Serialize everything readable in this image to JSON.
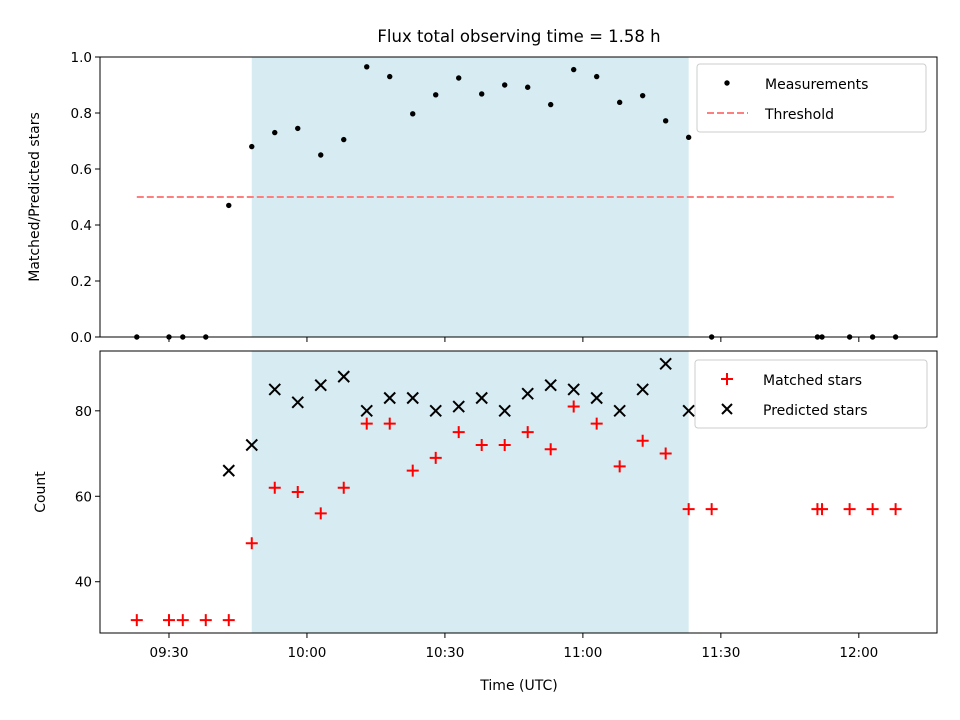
{
  "chart_data": [
    {
      "type": "scatter",
      "title": "Flux total observing time = 1.58 h",
      "xlabel": "",
      "ylabel": "Matched/Predicted stars",
      "ylim": [
        0,
        1.0
      ],
      "yticks": [
        "0.0",
        "0.2",
        "0.4",
        "0.6",
        "0.8",
        "1.0"
      ],
      "xlim": [
        "09:15",
        "12:17"
      ],
      "shaded_interval": [
        "09:48",
        "11:23"
      ],
      "shade_color": "#add8e6",
      "legend_position": "upper right",
      "series": [
        {
          "name": "Measurements",
          "marker": "dot",
          "color": "#000000",
          "x": [
            "09:23",
            "09:30",
            "09:33",
            "09:38",
            "09:43",
            "09:48",
            "09:53",
            "09:58",
            "10:03",
            "10:08",
            "10:13",
            "10:18",
            "10:23",
            "10:28",
            "10:33",
            "10:38",
            "10:43",
            "10:48",
            "10:53",
            "10:58",
            "11:03",
            "11:08",
            "11:13",
            "11:18",
            "11:23",
            "11:28",
            "11:51",
            "11:52",
            "11:58",
            "12:03",
            "12:08"
          ],
          "y": [
            0,
            0,
            0,
            0,
            0.47,
            0.68,
            0.73,
            0.745,
            0.65,
            0.705,
            0.965,
            0.93,
            0.797,
            0.865,
            0.925,
            0.868,
            0.9,
            0.892,
            0.83,
            0.955,
            0.93,
            0.838,
            0.862,
            0.772,
            0.713,
            0,
            0,
            0,
            0,
            0,
            0
          ]
        },
        {
          "name": "Threshold",
          "style": "dashed",
          "color": "#ff7f7f",
          "x": [
            "09:23",
            "12:08"
          ],
          "y": [
            0.5,
            0.5
          ]
        }
      ]
    },
    {
      "type": "scatter",
      "xlabel": "Time (UTC)",
      "ylabel": "Count",
      "ylim": [
        28,
        94
      ],
      "yticks": [
        "40",
        "60",
        "80"
      ],
      "xlim": [
        "09:15",
        "12:17"
      ],
      "xticks": [
        "09:30",
        "10:00",
        "10:30",
        "11:00",
        "11:30",
        "12:00"
      ],
      "shaded_interval": [
        "09:48",
        "11:23"
      ],
      "shade_color": "#add8e6",
      "legend_position": "upper right",
      "series": [
        {
          "name": "Matched stars",
          "marker": "plus",
          "color": "#ff0000",
          "x": [
            "09:23",
            "09:30",
            "09:33",
            "09:38",
            "09:43",
            "09:48",
            "09:53",
            "09:58",
            "10:03",
            "10:08",
            "10:13",
            "10:18",
            "10:23",
            "10:28",
            "10:33",
            "10:38",
            "10:43",
            "10:48",
            "10:53",
            "10:58",
            "11:03",
            "11:08",
            "11:13",
            "11:18",
            "11:23",
            "11:28",
            "11:51",
            "11:52",
            "11:58",
            "12:03",
            "12:08"
          ],
          "y": [
            31,
            31,
            31,
            31,
            31,
            49,
            62,
            61,
            56,
            62,
            77,
            77,
            66,
            69,
            75,
            72,
            72,
            75,
            71,
            81,
            77,
            67,
            73,
            70,
            57,
            57,
            57,
            57,
            57,
            57,
            57
          ]
        },
        {
          "name": "Predicted stars",
          "marker": "x",
          "color": "#000000",
          "x": [
            "09:43",
            "09:48",
            "09:53",
            "09:58",
            "10:03",
            "10:08",
            "10:13",
            "10:18",
            "10:23",
            "10:28",
            "10:33",
            "10:38",
            "10:43",
            "10:48",
            "10:53",
            "10:58",
            "11:03",
            "11:08",
            "11:13",
            "11:18",
            "11:23"
          ],
          "y": [
            66,
            72,
            85,
            82,
            86,
            88,
            80,
            83,
            83,
            80,
            81,
            83,
            80,
            84,
            86,
            85,
            83,
            80,
            85,
            91,
            80
          ]
        }
      ]
    }
  ]
}
